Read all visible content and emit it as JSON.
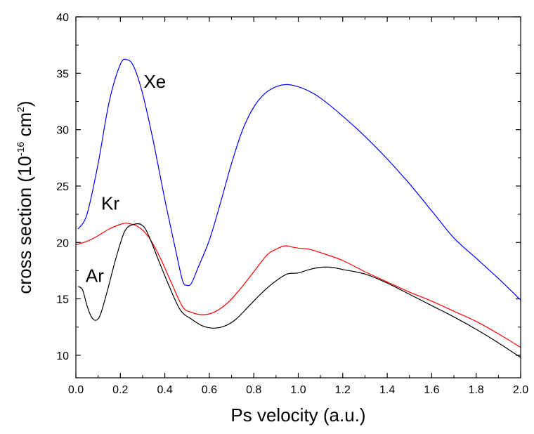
{
  "chart_data": {
    "type": "line",
    "title": "",
    "xlabel": "Ps velocity (a.u.)",
    "ylabel": {
      "prefix": "cross section (10",
      "exp1": "-16",
      "mid": " cm",
      "exp2": "2",
      "suffix": ")"
    },
    "xlim": [
      0.0,
      2.0
    ],
    "ylim": [
      8,
      40
    ],
    "x_ticks": [
      "0.0",
      "0.2",
      "0.4",
      "0.6",
      "0.8",
      "1.0",
      "1.2",
      "1.4",
      "1.6",
      "1.8",
      "2.0"
    ],
    "y_ticks": [
      "10",
      "15",
      "20",
      "25",
      "30",
      "35",
      "40"
    ],
    "grid": false,
    "series": [
      {
        "name": "Xe",
        "color": "#0000ff",
        "points": [
          [
            0.01,
            21.2
          ],
          [
            0.05,
            22.5
          ],
          [
            0.1,
            27.0
          ],
          [
            0.15,
            32.5
          ],
          [
            0.2,
            35.8
          ],
          [
            0.23,
            36.2
          ],
          [
            0.26,
            35.6
          ],
          [
            0.3,
            33.2
          ],
          [
            0.35,
            28.8
          ],
          [
            0.4,
            23.8
          ],
          [
            0.45,
            19.2
          ],
          [
            0.48,
            16.6
          ],
          [
            0.5,
            16.2
          ],
          [
            0.52,
            16.4
          ],
          [
            0.55,
            17.8
          ],
          [
            0.6,
            20.2
          ],
          [
            0.65,
            23.5
          ],
          [
            0.7,
            27.0
          ],
          [
            0.75,
            30.0
          ],
          [
            0.8,
            32.0
          ],
          [
            0.85,
            33.2
          ],
          [
            0.9,
            33.8
          ],
          [
            0.95,
            34.0
          ],
          [
            1.0,
            33.8
          ],
          [
            1.05,
            33.4
          ],
          [
            1.1,
            32.8
          ],
          [
            1.2,
            31.2
          ],
          [
            1.3,
            29.4
          ],
          [
            1.4,
            27.4
          ],
          [
            1.5,
            25.2
          ],
          [
            1.6,
            22.8
          ],
          [
            1.7,
            20.4
          ],
          [
            1.8,
            18.6
          ],
          [
            1.9,
            16.8
          ],
          [
            2.0,
            14.9
          ]
        ]
      },
      {
        "name": "Kr",
        "color": "#ff0000",
        "points": [
          [
            0.0,
            19.8
          ],
          [
            0.05,
            20.1
          ],
          [
            0.1,
            20.6
          ],
          [
            0.15,
            21.2
          ],
          [
            0.2,
            21.6
          ],
          [
            0.23,
            21.7
          ],
          [
            0.28,
            21.4
          ],
          [
            0.33,
            20.4
          ],
          [
            0.38,
            18.6
          ],
          [
            0.43,
            16.4
          ],
          [
            0.48,
            14.3
          ],
          [
            0.52,
            13.8
          ],
          [
            0.57,
            13.6
          ],
          [
            0.62,
            13.8
          ],
          [
            0.68,
            14.6
          ],
          [
            0.74,
            15.9
          ],
          [
            0.8,
            17.4
          ],
          [
            0.86,
            18.9
          ],
          [
            0.9,
            19.4
          ],
          [
            0.94,
            19.7
          ],
          [
            0.97,
            19.6
          ],
          [
            1.0,
            19.5
          ],
          [
            1.05,
            19.4
          ],
          [
            1.1,
            19.1
          ],
          [
            1.2,
            18.4
          ],
          [
            1.3,
            17.4
          ],
          [
            1.4,
            16.5
          ],
          [
            1.5,
            15.6
          ],
          [
            1.6,
            14.8
          ],
          [
            1.7,
            13.9
          ],
          [
            1.8,
            13.0
          ],
          [
            1.9,
            11.9
          ],
          [
            2.0,
            10.7
          ]
        ]
      },
      {
        "name": "Ar",
        "color": "#000000",
        "points": [
          [
            0.01,
            16.1
          ],
          [
            0.03,
            15.8
          ],
          [
            0.05,
            14.4
          ],
          [
            0.07,
            13.4
          ],
          [
            0.09,
            13.1
          ],
          [
            0.11,
            13.6
          ],
          [
            0.14,
            15.6
          ],
          [
            0.18,
            18.6
          ],
          [
            0.22,
            21.0
          ],
          [
            0.26,
            21.6
          ],
          [
            0.3,
            21.5
          ],
          [
            0.33,
            20.5
          ],
          [
            0.37,
            18.5
          ],
          [
            0.42,
            16.1
          ],
          [
            0.47,
            14.0
          ],
          [
            0.52,
            13.2
          ],
          [
            0.57,
            12.6
          ],
          [
            0.62,
            12.4
          ],
          [
            0.67,
            12.6
          ],
          [
            0.72,
            13.2
          ],
          [
            0.78,
            14.4
          ],
          [
            0.84,
            15.6
          ],
          [
            0.9,
            16.6
          ],
          [
            0.95,
            17.2
          ],
          [
            1.0,
            17.3
          ],
          [
            1.05,
            17.6
          ],
          [
            1.1,
            17.8
          ],
          [
            1.15,
            17.8
          ],
          [
            1.2,
            17.6
          ],
          [
            1.3,
            17.2
          ],
          [
            1.4,
            16.4
          ],
          [
            1.5,
            15.4
          ],
          [
            1.6,
            14.4
          ],
          [
            1.7,
            13.4
          ],
          [
            1.8,
            12.3
          ],
          [
            1.9,
            11.1
          ],
          [
            2.0,
            9.8
          ]
        ]
      }
    ],
    "annotations": [
      {
        "text": "Xe",
        "x": 0.355,
        "y": 33.7
      },
      {
        "text": "Kr",
        "x": 0.155,
        "y": 22.9
      },
      {
        "text": "Ar",
        "x": 0.085,
        "y": 16.5
      }
    ]
  }
}
